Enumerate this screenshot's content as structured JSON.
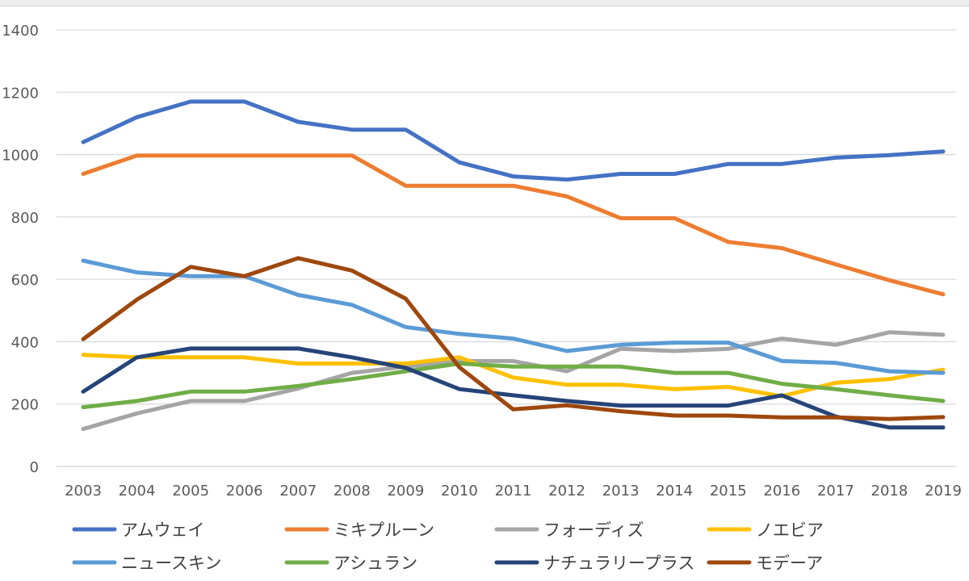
{
  "chart_data": {
    "type": "line",
    "title": "",
    "xlabel": "",
    "ylabel": "",
    "ylim": [
      0,
      1400
    ],
    "yticks": [
      0,
      200,
      400,
      600,
      800,
      1000,
      1200,
      1400
    ],
    "grid": true,
    "legend_position": "bottom",
    "categories": [
      "2003",
      "2004",
      "2005",
      "2006",
      "2007",
      "2008",
      "2009",
      "2010",
      "2011",
      "2012",
      "2013",
      "2014",
      "2015",
      "2016",
      "2017",
      "2018",
      "2019"
    ],
    "series": [
      {
        "name": "アムウェイ",
        "color": "#4472C4",
        "values": [
          1040,
          1120,
          1170,
          1170,
          1105,
          1080,
          1080,
          975,
          930,
          920,
          938,
          938,
          970,
          970,
          990,
          998,
          1010
        ]
      },
      {
        "name": "ミキプルーン",
        "color": "#ED7D31",
        "values": [
          938,
          997,
          997,
          997,
          997,
          997,
          900,
          900,
          900,
          866,
          796,
          796,
          720,
          700,
          648,
          597,
          552
        ]
      },
      {
        "name": "フォーディズ",
        "color": "#A5A5A5",
        "values": [
          120,
          170,
          210,
          210,
          250,
          300,
          320,
          338,
          338,
          305,
          377,
          370,
          377,
          410,
          390,
          430,
          422
        ]
      },
      {
        "name": "ノエビア",
        "color": "#FFC000",
        "values": [
          358,
          350,
          350,
          350,
          330,
          330,
          330,
          350,
          285,
          262,
          262,
          248,
          255,
          225,
          268,
          280,
          310
        ]
      },
      {
        "name": "ニュースキン",
        "color": "#5B9BD5",
        "values": [
          660,
          622,
          610,
          610,
          550,
          518,
          447,
          425,
          410,
          370,
          390,
          397,
          397,
          338,
          332,
          305,
          300
        ]
      },
      {
        "name": "アシュラン",
        "color": "#70AD47",
        "values": [
          190,
          210,
          240,
          240,
          258,
          280,
          305,
          330,
          320,
          320,
          320,
          300,
          300,
          265,
          248,
          228,
          210
        ]
      },
      {
        "name": "ナチュラリープラス",
        "color": "#264478",
        "values": [
          240,
          350,
          378,
          378,
          378,
          350,
          316,
          248,
          228,
          210,
          195,
          195,
          195,
          228,
          160,
          125,
          125
        ]
      },
      {
        "name": "モデーア",
        "color": "#9E480E",
        "values": [
          408,
          535,
          640,
          610,
          668,
          628,
          538,
          318,
          183,
          196,
          177,
          163,
          163,
          157,
          157,
          152,
          158
        ]
      }
    ]
  }
}
